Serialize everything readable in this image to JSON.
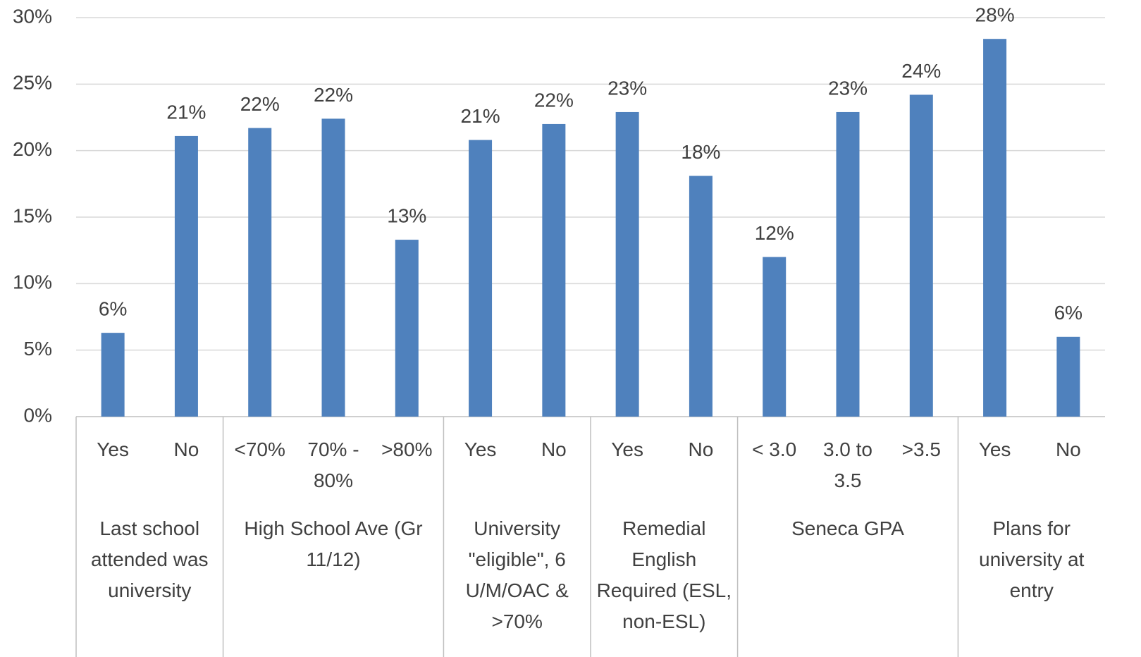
{
  "chart_data": {
    "type": "bar",
    "color": "#4f81bd",
    "grid": true,
    "ylim": [
      0,
      30
    ],
    "yticks": [
      {
        "value": 0,
        "label": "0%"
      },
      {
        "value": 5,
        "label": "5%"
      },
      {
        "value": 10,
        "label": "10%"
      },
      {
        "value": 15,
        "label": "15%"
      },
      {
        "value": 20,
        "label": "20%"
      },
      {
        "value": 25,
        "label": "25%"
      },
      {
        "value": 30,
        "label": "30%"
      }
    ],
    "groups": [
      {
        "label": "Last school attended  was university",
        "categories": [
          "Yes",
          "No"
        ],
        "values": [
          6.3,
          21.1
        ],
        "value_labels": [
          "6%",
          "21%"
        ]
      },
      {
        "label": "High School Ave (Gr 11/12)",
        "categories": [
          "<70%",
          "70% - 80%",
          ">80%"
        ],
        "values": [
          21.7,
          22.4,
          13.3
        ],
        "value_labels": [
          "22%",
          "22%",
          "13%"
        ]
      },
      {
        "label": "University \"eligible\", 6 U/M/OAC & >70%",
        "categories": [
          "Yes",
          "No"
        ],
        "values": [
          20.8,
          22.0
        ],
        "value_labels": [
          "21%",
          "22%"
        ]
      },
      {
        "label": "Remedial English Required (ESL, non-ESL)",
        "categories": [
          "Yes",
          "No"
        ],
        "values": [
          22.9,
          18.1
        ],
        "value_labels": [
          "23%",
          "18%"
        ]
      },
      {
        "label": "Seneca GPA",
        "categories": [
          "< 3.0",
          "3.0 to 3.5",
          ">3.5"
        ],
        "values": [
          12.0,
          22.9,
          24.2
        ],
        "value_labels": [
          "12%",
          "23%",
          "24%"
        ]
      },
      {
        "label": "Plans for university at entry",
        "categories": [
          "Yes",
          "No"
        ],
        "values": [
          28.4,
          6.0
        ],
        "value_labels": [
          "28%",
          "6%"
        ]
      }
    ]
  }
}
